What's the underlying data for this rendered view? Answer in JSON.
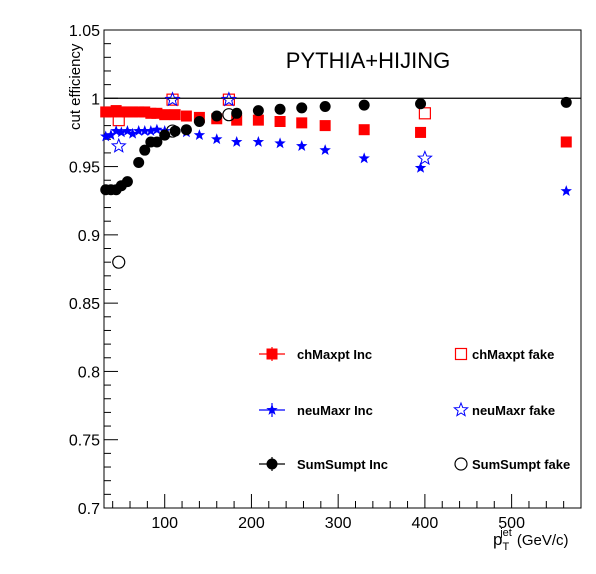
{
  "chart_data": {
    "type": "scatter",
    "title": "PYTHIA+HIJING",
    "xlabel": {
      "main": "p",
      "sub": "T",
      "sup": "jet",
      "unit": "(GeV/c)"
    },
    "ylabel": "cut efficiency",
    "xlim": [
      30,
      580
    ],
    "ylim": [
      0.7,
      1.05
    ],
    "x_ticks": [
      100,
      200,
      300,
      400,
      500
    ],
    "y_ticks": [
      {
        "v": 0.7,
        "label": "0.7"
      },
      {
        "v": 0.75,
        "label": "0.75"
      },
      {
        "v": 0.8,
        "label": "0.8"
      },
      {
        "v": 0.85,
        "label": "0.85"
      },
      {
        "v": 0.9,
        "label": "0.9"
      },
      {
        "v": 0.95,
        "label": "0.95"
      },
      {
        "v": 1.0,
        "label": "1"
      },
      {
        "v": 1.05,
        "label": "1.05"
      }
    ],
    "reference_line": 1.0,
    "grid": false,
    "legend_position": "bottom-right",
    "series": [
      {
        "name": "chMaxpt Inc",
        "marker": "square-filled",
        "color": "#ff0000",
        "x": [
          32,
          38,
          44,
          50,
          57,
          63,
          70,
          77,
          84,
          91,
          100,
          112,
          125,
          140,
          160,
          183,
          208,
          233,
          258,
          285,
          330,
          395,
          563
        ],
        "y": [
          0.99,
          0.99,
          0.991,
          0.99,
          0.99,
          0.99,
          0.99,
          0.99,
          0.989,
          0.989,
          0.988,
          0.988,
          0.987,
          0.986,
          0.985,
          0.984,
          0.984,
          0.983,
          0.982,
          0.98,
          0.977,
          0.975,
          0.968
        ]
      },
      {
        "name": "chMaxpt fake",
        "marker": "square-open",
        "color": "#ff0000",
        "x": [
          47,
          109,
          174,
          400
        ],
        "y": [
          0.984,
          0.999,
          0.999,
          0.989
        ]
      },
      {
        "name": "neuMaxr Inc",
        "marker": "star-filled",
        "color": "#0000ff",
        "x": [
          32,
          38,
          44,
          50,
          57,
          63,
          70,
          77,
          84,
          91,
          100,
          112,
          125,
          140,
          160,
          183,
          208,
          233,
          258,
          285,
          330,
          395,
          563
        ],
        "y": [
          0.972,
          0.973,
          0.976,
          0.975,
          0.976,
          0.974,
          0.976,
          0.976,
          0.976,
          0.977,
          0.976,
          0.976,
          0.975,
          0.973,
          0.97,
          0.968,
          0.968,
          0.967,
          0.965,
          0.962,
          0.956,
          0.949,
          0.932
        ]
      },
      {
        "name": "neuMaxr fake",
        "marker": "star-open",
        "color": "#0000ff",
        "x": [
          47,
          109,
          174,
          400
        ],
        "y": [
          0.965,
          0.999,
          0.999,
          0.956
        ]
      },
      {
        "name": "SumSumpt Inc",
        "marker": "circle-filled",
        "color": "#000000",
        "x": [
          32,
          38,
          44,
          50,
          57,
          70,
          77,
          84,
          91,
          100,
          112,
          125,
          140,
          160,
          183,
          208,
          233,
          258,
          285,
          330,
          395,
          563
        ],
        "y": [
          0.933,
          0.933,
          0.933,
          0.936,
          0.939,
          0.953,
          0.962,
          0.968,
          0.968,
          0.973,
          0.976,
          0.977,
          0.983,
          0.987,
          0.989,
          0.991,
          0.992,
          0.993,
          0.994,
          0.995,
          0.996,
          0.997
        ]
      },
      {
        "name": "SumSumpt fake",
        "marker": "circle-open",
        "color": "#000000",
        "x": [
          47,
          109,
          174
        ],
        "y": [
          0.88,
          0.976,
          0.988
        ]
      }
    ]
  }
}
